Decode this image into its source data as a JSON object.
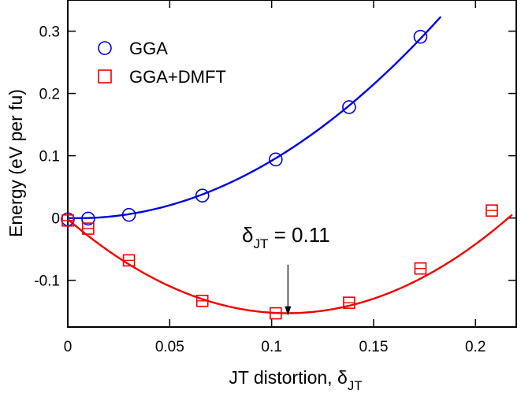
{
  "chart_data": {
    "type": "scatter",
    "title": "",
    "xlabel": "JT distortion, ",
    "xlabel_symbol": "δ",
    "xlabel_subscript": "JT",
    "ylabel": "Energy (eV per fu)",
    "xlim": [
      0,
      0.22
    ],
    "ylim": [
      -0.175,
      0.35
    ],
    "xticks": [
      0,
      0.05,
      0.1,
      0.15,
      0.2
    ],
    "xtick_labels": [
      "0",
      "0.05",
      "0.1",
      "0.15",
      "0.2"
    ],
    "yticks": [
      -0.1,
      0,
      0.1,
      0.2,
      0.3
    ],
    "ytick_labels": [
      "-0.1",
      "0",
      "0.1",
      "0.2",
      "0.3"
    ],
    "legend_position": "top-left",
    "series": [
      {
        "name": "GGA",
        "marker": "circle",
        "color": "#0000dd",
        "x": [
          0,
          0.01,
          0.03,
          0.066,
          0.102,
          0.138,
          0.173
        ],
        "y": [
          -0.002,
          -0.001,
          0.005,
          0.036,
          0.094,
          0.178,
          0.291
        ],
        "fit_coeffs": [
          0.0,
          -0.1,
          10.2
        ]
      },
      {
        "name": "GGA+DMFT",
        "marker": "square",
        "color": "#ee0000",
        "x": [
          0,
          0.01,
          0.03,
          0.066,
          0.102,
          0.138,
          0.173,
          0.208
        ],
        "y": [
          -0.004,
          -0.017,
          -0.068,
          -0.133,
          -0.153,
          -0.136,
          -0.081,
          0.012
        ],
        "fit_coeffs": [
          -0.002,
          -2.8,
          13.0
        ]
      }
    ],
    "annotation": {
      "symbol": "δ",
      "subscript": "JT",
      "text": " = 0.11",
      "arrow_x": 0.108,
      "arrow_from_y": -0.075,
      "arrow_to_y": -0.157
    }
  }
}
